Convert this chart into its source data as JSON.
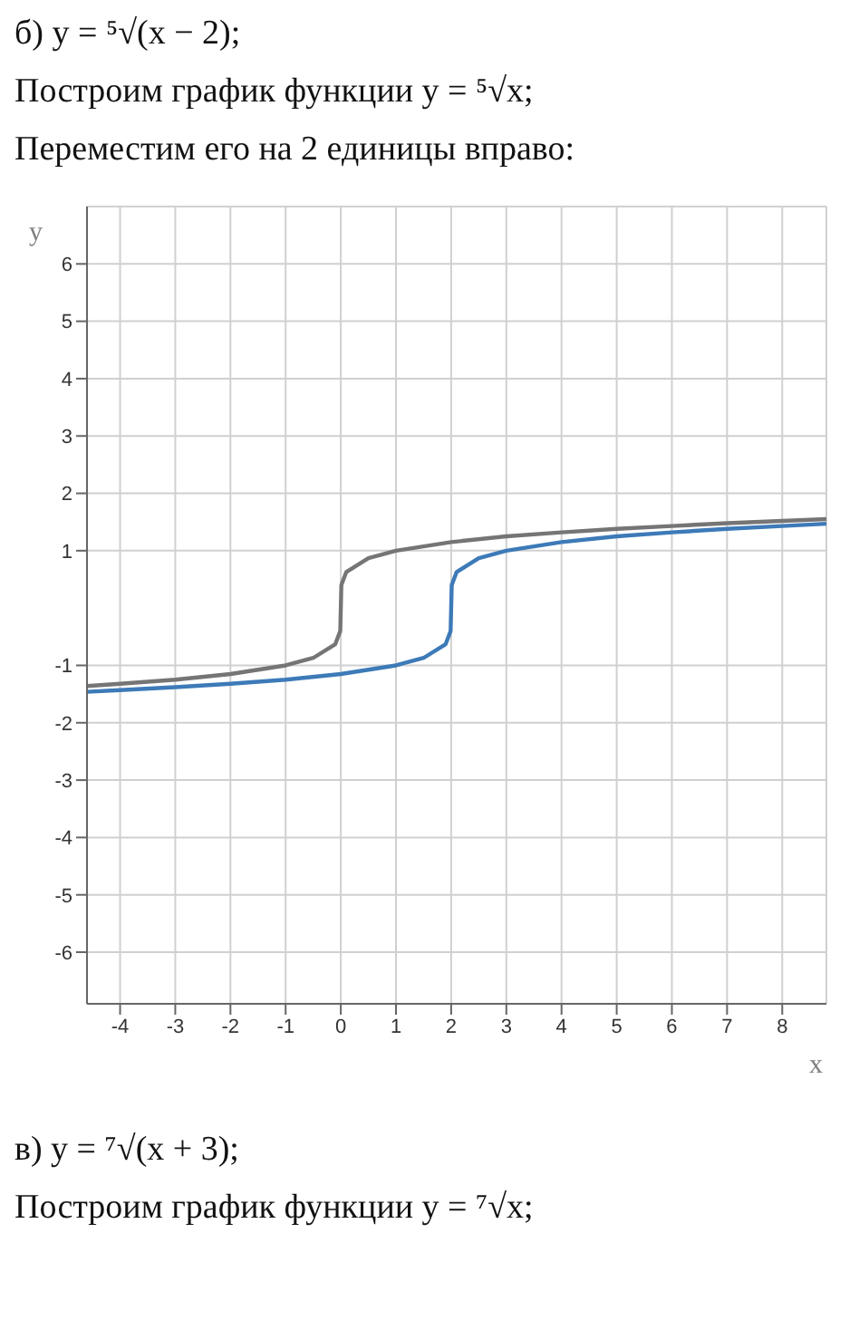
{
  "chart_data": {
    "type": "line",
    "title": "б) y = ⁵√(x − 2);",
    "subtitle": "Построим график функции y = ⁵√x;",
    "annotations": [
      "Переместим его на 2 единицы вправо:",
      "в) y = ⁷√(x + 3);",
      "Построим график функции y = ⁷√x;"
    ],
    "xlabel": "x",
    "ylabel": "y",
    "marker": "none",
    "grid": true,
    "xlim": [
      -4.6,
      8.8
    ],
    "ylim": [
      -6.9,
      7
    ],
    "xticks": [
      -4,
      -3,
      -2,
      -1,
      0,
      1,
      2,
      3,
      4,
      5,
      6,
      7,
      8
    ],
    "yticks": [
      -6,
      -5,
      -4,
      -3,
      -2,
      -1,
      1,
      2,
      3,
      4,
      5,
      6
    ],
    "series": [
      {
        "color": "#757575",
        "x": [
          -4.6,
          -4,
          -3,
          -2,
          -1,
          -0.5,
          -0.1,
          -0.01,
          0,
          0.01,
          0.1,
          0.5,
          1,
          2,
          3,
          4,
          5,
          6,
          7,
          8,
          8.8
        ],
        "values": [
          -1.36,
          -1.32,
          -1.25,
          -1.15,
          -1,
          -0.87,
          -0.63,
          -0.4,
          0,
          0.4,
          0.63,
          0.87,
          1,
          1.15,
          1.25,
          1.32,
          1.38,
          1.43,
          1.48,
          1.52,
          1.55
        ]
      },
      {
        "color": "#3d7ab8",
        "x": [
          -4.6,
          -4,
          -3,
          -2,
          -1,
          0,
          1,
          1.5,
          1.9,
          1.99,
          2,
          2.01,
          2.1,
          2.5,
          3,
          4,
          5,
          6,
          7,
          8,
          8.8
        ],
        "values": [
          -1.46,
          -1.43,
          -1.38,
          -1.32,
          -1.25,
          -1.15,
          -1,
          -0.87,
          -0.63,
          -0.4,
          0,
          0.4,
          0.63,
          0.87,
          1,
          1.15,
          1.25,
          1.32,
          1.38,
          1.43,
          1.47
        ]
      }
    ]
  }
}
